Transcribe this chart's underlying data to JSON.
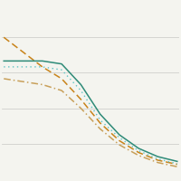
{
  "x": [
    0,
    1,
    2,
    3,
    4,
    5,
    6,
    7,
    8,
    9
  ],
  "line_solid_teal": [
    20,
    20,
    20,
    19.5,
    16,
    11,
    7.5,
    5.2,
    3.8,
    3.0
  ],
  "line_dotted_cyan": [
    19,
    19,
    19,
    18.5,
    15,
    10,
    7.0,
    4.8,
    3.4,
    2.6
  ],
  "line_dashed_orange": [
    24,
    21.5,
    19,
    17,
    13.5,
    9.5,
    6.5,
    4.5,
    3.2,
    2.5
  ],
  "line_dashdot_tan": [
    17,
    16.5,
    16,
    15,
    12,
    8.5,
    5.8,
    4.0,
    2.8,
    2.1
  ],
  "color_teal": "#2e8b78",
  "color_cyan": "#5ec4c4",
  "color_orange": "#c8831a",
  "color_tan": "#c8a05a",
  "ylim": [
    0,
    30
  ],
  "xlim": [
    -0.1,
    9.1
  ],
  "grid_yticks": [
    6,
    12,
    18,
    24
  ],
  "grid_color": "#d0d0cc",
  "bg_color": "#f4f4ef",
  "lw_solid": 1.1,
  "lw_dotted": 1.0,
  "lw_dashed": 1.1,
  "lw_dashdot": 1.1,
  "figsize": [
    2.0,
    2.0
  ],
  "dpi": 100
}
